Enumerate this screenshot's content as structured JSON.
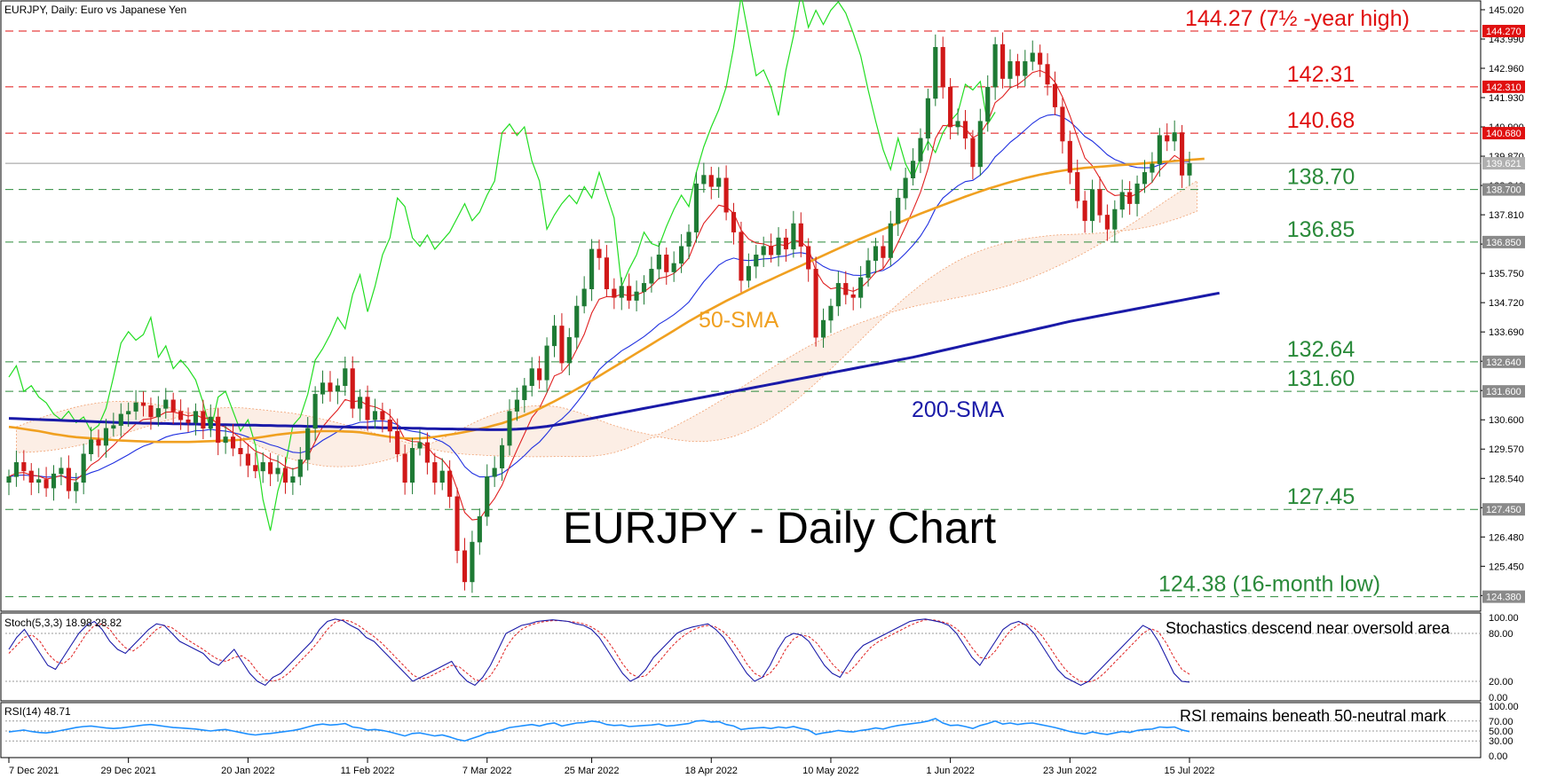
{
  "header": {
    "main": "EURJPY, Daily:  Euro vs Japanese Yen",
    "stoch": "Stoch(5,3,3) 18.98 28.82",
    "rsi": "RSI(14) 48.71"
  },
  "title": "EURJPY - Daily Chart",
  "notes": {
    "stoch": "Stochastics descend near oversold area",
    "rsi": "RSI remains beneath 50-neutral mark"
  },
  "labels": {
    "sma50": "50-SMA",
    "sma200": "200-SMA"
  },
  "colors": {
    "resistance": "#e01010",
    "support": "#2a8a3a",
    "candle_up": "#1e7a34",
    "candle_down": "#d01818",
    "sma50": "#f0a020",
    "sma200": "#1a1aa8",
    "tenkan": "#e02020",
    "kijun": "#2030e0",
    "chikou": "#22dd22",
    "cloud": "#f0a070",
    "stoch_main": "#1a1aa8",
    "stoch_signal": "#e02020",
    "rsi": "#1e90ff"
  },
  "levels": [
    {
      "value": 144.27,
      "type": "resistance",
      "text": "144.27 (7½ -year high)",
      "tag": "144.270"
    },
    {
      "value": 142.31,
      "type": "resistance",
      "text": "142.31",
      "tag": "142.310"
    },
    {
      "value": 140.68,
      "type": "resistance",
      "text": "140.68",
      "tag": "140.680"
    },
    {
      "value": 138.7,
      "type": "support",
      "text": "138.70",
      "tag": "138.700"
    },
    {
      "value": 136.85,
      "type": "support",
      "text": "136.85",
      "tag": "136.850"
    },
    {
      "value": 132.64,
      "type": "support",
      "text": "132.64",
      "tag": "132.640"
    },
    {
      "value": 131.6,
      "type": "support",
      "text": "131.60",
      "tag": "131.600"
    },
    {
      "value": 127.45,
      "type": "support",
      "text": "127.45",
      "tag": "127.450"
    },
    {
      "value": 124.38,
      "type": "support",
      "text": "124.38 (16-month low)",
      "tag": "124.380"
    }
  ],
  "current_price": {
    "value": 139.62,
    "tag": "139.621"
  },
  "chart_data": {
    "type": "candlestick",
    "title": "EURJPY - Daily Chart",
    "price_axis": {
      "range": [
        123.9,
        145.3
      ],
      "ticks": [
        145.02,
        143.99,
        142.96,
        141.93,
        140.9,
        139.87,
        138.84,
        137.81,
        136.78,
        135.75,
        134.72,
        133.69,
        132.66,
        131.63,
        130.6,
        129.57,
        128.54,
        127.51,
        126.48,
        125.45,
        124.42
      ],
      "tick_labels": [
        "145.020",
        "143.990",
        "142.960",
        "141.930",
        "140.900",
        "139.870",
        "138.840",
        "137.810",
        "136.780",
        "135.750",
        "134.720",
        "133.690",
        "132.660",
        "131.630",
        "130.600",
        "129.570",
        "128.540",
        "127.510",
        "126.480",
        "125.450",
        "124.420"
      ]
    },
    "date_labels": [
      "7 Dec 2021",
      "29 Dec 2021",
      "20 Jan 2022",
      "11 Feb 2022",
      "7 Mar 2022",
      "25 Mar 2022",
      "18 Apr 2022",
      "10 May 2022",
      "1 Jun 2022",
      "23 Jun 2022",
      "15 Jul 2022"
    ],
    "date_label_index": [
      0,
      16,
      32,
      48,
      64,
      78,
      94,
      110,
      126,
      142,
      158
    ],
    "candles_close": [
      128.6,
      129.1,
      128.8,
      128.4,
      128.5,
      128.2,
      128.7,
      128.9,
      128.1,
      128.4,
      129.4,
      129.9,
      129.7,
      130.3,
      130.4,
      130.8,
      130.9,
      131.2,
      131.1,
      130.7,
      131.0,
      131.3,
      130.9,
      130.6,
      130.5,
      130.9,
      130.3,
      130.7,
      129.8,
      130.0,
      129.6,
      129.4,
      129.0,
      128.8,
      129.1,
      128.7,
      128.9,
      128.4,
      128.6,
      129.2,
      130.3,
      131.5,
      131.9,
      131.6,
      131.8,
      132.4,
      131.0,
      131.4,
      130.6,
      130.9,
      130.6,
      130.2,
      129.4,
      128.4,
      129.6,
      129.8,
      129.1,
      128.4,
      128.8,
      127.9,
      126.0,
      124.9,
      126.3,
      127.2,
      128.6,
      128.9,
      129.7,
      130.9,
      131.3,
      131.8,
      132.4,
      132.0,
      133.2,
      133.9,
      132.6,
      133.5,
      134.6,
      135.2,
      136.6,
      136.3,
      135.2,
      134.9,
      135.3,
      134.8,
      135.1,
      135.4,
      135.9,
      136.4,
      135.8,
      136.1,
      136.7,
      137.2,
      138.9,
      139.2,
      138.8,
      139.1,
      137.9,
      137.2,
      135.5,
      136.0,
      136.4,
      136.7,
      136.4,
      137.0,
      136.6,
      137.5,
      136.7,
      135.9,
      133.5,
      134.1,
      134.6,
      135.4,
      135.0,
      134.9,
      135.6,
      136.2,
      136.7,
      136.3,
      137.5,
      138.4,
      139.1,
      139.7,
      140.5,
      141.9,
      143.7,
      142.3,
      140.9,
      141.1,
      140.5,
      139.5,
      141.1,
      142.3,
      143.8,
      142.6,
      143.2,
      142.7,
      143.2,
      143.5,
      143.1,
      142.4,
      141.6,
      140.4,
      139.3,
      138.3,
      137.6,
      138.7,
      137.8,
      137.3,
      138.0,
      138.6,
      138.2,
      138.9,
      139.3,
      139.6,
      140.6,
      140.4,
      140.7,
      139.2,
      139.62
    ],
    "sma50": [
      130.35,
      130.32,
      130.28,
      130.24,
      130.2,
      130.15,
      130.1,
      130.06,
      130.02,
      129.99,
      129.97,
      129.95,
      129.93,
      129.91,
      129.89,
      129.87,
      129.86,
      129.85,
      129.84,
      129.83,
      129.82,
      129.82,
      129.82,
      129.82,
      129.82,
      129.83,
      129.84,
      129.85,
      129.86,
      129.87,
      129.88,
      129.9,
      129.93,
      129.96,
      130.0,
      130.04,
      130.08,
      130.11,
      130.14,
      130.16,
      130.18,
      130.19,
      130.2,
      130.2,
      130.2,
      130.19,
      130.18,
      130.16,
      130.12,
      130.08,
      130.04,
      130.0,
      129.97,
      129.95,
      129.94,
      129.95,
      129.97,
      130.0,
      130.04,
      130.08,
      130.12,
      130.17,
      130.22,
      130.28,
      130.34,
      130.41,
      130.48,
      130.57,
      130.66,
      130.76,
      130.87,
      130.99,
      131.12,
      131.25,
      131.39,
      131.53,
      131.68,
      131.83,
      131.98,
      132.14,
      132.3,
      132.46,
      132.62,
      132.78,
      132.94,
      133.1,
      133.26,
      133.42,
      133.58,
      133.74,
      133.9,
      134.06,
      134.21,
      134.36,
      134.5,
      134.64,
      134.78,
      134.91,
      135.04,
      135.17,
      135.3,
      135.42,
      135.54,
      135.66,
      135.78,
      135.9,
      136.02,
      136.14,
      136.26,
      136.38,
      136.5,
      136.62,
      136.74,
      136.86,
      136.97,
      137.08,
      137.19,
      137.3,
      137.41,
      137.52,
      137.63,
      137.74,
      137.85,
      137.95,
      138.05,
      138.15,
      138.25,
      138.35,
      138.45,
      138.54,
      138.63,
      138.72,
      138.8,
      138.88,
      138.96,
      139.03,
      139.1,
      139.16,
      139.22,
      139.27,
      139.32,
      139.36,
      139.4,
      139.43,
      139.46,
      139.48,
      139.5,
      139.52,
      139.54,
      139.56,
      139.58,
      139.6,
      139.62,
      139.64,
      139.66,
      139.68,
      139.7,
      139.72,
      139.74,
      139.76,
      139.78
    ],
    "sma200": [
      130.65,
      130.64,
      130.63,
      130.62,
      130.61,
      130.6,
      130.59,
      130.58,
      130.57,
      130.56,
      130.55,
      130.54,
      130.53,
      130.52,
      130.51,
      130.5,
      130.49,
      130.49,
      130.48,
      130.48,
      130.47,
      130.47,
      130.46,
      130.46,
      130.45,
      130.45,
      130.44,
      130.44,
      130.43,
      130.43,
      130.42,
      130.42,
      130.41,
      130.41,
      130.4,
      130.4,
      130.39,
      130.39,
      130.38,
      130.38,
      130.37,
      130.37,
      130.36,
      130.36,
      130.35,
      130.35,
      130.34,
      130.34,
      130.33,
      130.33,
      130.32,
      130.32,
      130.31,
      130.31,
      130.3,
      130.3,
      130.29,
      130.29,
      130.28,
      130.28,
      130.27,
      130.27,
      130.26,
      130.26,
      130.25,
      130.25,
      130.25,
      130.26,
      130.27,
      130.29,
      130.31,
      130.34,
      130.37,
      130.41,
      130.45,
      130.5,
      130.55,
      130.6,
      130.65,
      130.7,
      130.75,
      130.8,
      130.85,
      130.9,
      130.95,
      131.0,
      131.05,
      131.1,
      131.15,
      131.2,
      131.25,
      131.3,
      131.35,
      131.4,
      131.45,
      131.5,
      131.55,
      131.6,
      131.65,
      131.7,
      131.75,
      131.8,
      131.85,
      131.9,
      131.95,
      132.0,
      132.05,
      132.1,
      132.15,
      132.2,
      132.25,
      132.3,
      132.35,
      132.4,
      132.45,
      132.5,
      132.55,
      132.6,
      132.65,
      132.7,
      132.75,
      132.8,
      132.86,
      132.92,
      132.98,
      133.04,
      133.1,
      133.16,
      133.22,
      133.28,
      133.34,
      133.4,
      133.46,
      133.52,
      133.58,
      133.64,
      133.7,
      133.76,
      133.82,
      133.88,
      133.94,
      134.0,
      134.06,
      134.11,
      134.16,
      134.21,
      134.26,
      134.31,
      134.36,
      134.41,
      134.46,
      134.51,
      134.56,
      134.61,
      134.66,
      134.71,
      134.76,
      134.81,
      134.86,
      134.91,
      134.96,
      135.01,
      135.06
    ],
    "stochastic": {
      "main": [
        60,
        75,
        85,
        70,
        55,
        40,
        35,
        50,
        65,
        80,
        90,
        95,
        85,
        70,
        60,
        55,
        65,
        75,
        85,
        92,
        90,
        80,
        70,
        65,
        60,
        55,
        45,
        40,
        50,
        60,
        45,
        30,
        20,
        15,
        25,
        30,
        40,
        50,
        60,
        70,
        85,
        95,
        98,
        96,
        90,
        85,
        75,
        70,
        60,
        50,
        40,
        30,
        20,
        25,
        30,
        35,
        40,
        45,
        30,
        20,
        15,
        25,
        40,
        60,
        80,
        85,
        90,
        92,
        95,
        96,
        97,
        96,
        95,
        92,
        90,
        85,
        75,
        60,
        45,
        30,
        20,
        25,
        35,
        50,
        60,
        70,
        80,
        85,
        88,
        90,
        92,
        85,
        75,
        60,
        45,
        30,
        20,
        25,
        40,
        60,
        75,
        80,
        78,
        70,
        55,
        40,
        30,
        25,
        40,
        55,
        65,
        70,
        75,
        80,
        85,
        90,
        95,
        97,
        98,
        96,
        94,
        90,
        80,
        65,
        50,
        40,
        55,
        70,
        85,
        92,
        95,
        90,
        80,
        65,
        50,
        35,
        25,
        20,
        15,
        20,
        30,
        40,
        50,
        60,
        70,
        80,
        90,
        85,
        70,
        50,
        30,
        20,
        18.98
      ],
      "signal": [
        55,
        65,
        75,
        78,
        70,
        55,
        45,
        42,
        50,
        65,
        80,
        90,
        92,
        85,
        72,
        62,
        58,
        65,
        75,
        85,
        90,
        87,
        80,
        72,
        66,
        60,
        53,
        47,
        45,
        50,
        52,
        45,
        32,
        22,
        20,
        23,
        30,
        40,
        50,
        60,
        72,
        85,
        94,
        97,
        95,
        90,
        83,
        76,
        68,
        58,
        48,
        38,
        28,
        23,
        25,
        30,
        35,
        40,
        38,
        30,
        22,
        20,
        27,
        42,
        62,
        76,
        85,
        90,
        93,
        95,
        96,
        96,
        95,
        94,
        92,
        88,
        82,
        72,
        58,
        42,
        30,
        25,
        27,
        37,
        48,
        60,
        70,
        78,
        84,
        88,
        90,
        88,
        82,
        72,
        58,
        42,
        30,
        25,
        30,
        42,
        60,
        73,
        78,
        76,
        68,
        55,
        42,
        32,
        30,
        40,
        52,
        63,
        70,
        75,
        80,
        85,
        90,
        94,
        97,
        97,
        95,
        92,
        86,
        76,
        62,
        50,
        48,
        58,
        72,
        84,
        91,
        92,
        87,
        77,
        63,
        48,
        35,
        26,
        20,
        19,
        22,
        30,
        40,
        50,
        60,
        70,
        80,
        86,
        82,
        68,
        50,
        35,
        28.82
      ]
    },
    "rsi": [
      48,
      50,
      52,
      49,
      47,
      46,
      48,
      51,
      54,
      57,
      59,
      60,
      58,
      56,
      55,
      56,
      58,
      60,
      62,
      63,
      61,
      59,
      57,
      56,
      55,
      54,
      52,
      50,
      52,
      53,
      50,
      47,
      44,
      42,
      44,
      45,
      47,
      49,
      51,
      54,
      58,
      62,
      64,
      62,
      63,
      65,
      58,
      56,
      52,
      53,
      51,
      48,
      44,
      40,
      45,
      46,
      43,
      40,
      42,
      38,
      33,
      30,
      35,
      40,
      46,
      48,
      52,
      57,
      59,
      61,
      63,
      60,
      64,
      66,
      60,
      63,
      66,
      67,
      70,
      68,
      63,
      61,
      62,
      59,
      60,
      61,
      62,
      64,
      60,
      61,
      63,
      65,
      70,
      71,
      68,
      69,
      63,
      60,
      53,
      55,
      56,
      57,
      55,
      58,
      56,
      59,
      55,
      52,
      43,
      46,
      48,
      51,
      49,
      48,
      51,
      53,
      56,
      54,
      58,
      61,
      63,
      65,
      67,
      70,
      75,
      66,
      61,
      62,
      59,
      55,
      61,
      65,
      70,
      64,
      66,
      63,
      65,
      66,
      63,
      60,
      57,
      53,
      49,
      46,
      44,
      48,
      45,
      43,
      46,
      49,
      47,
      51,
      53,
      54,
      58,
      57,
      58,
      52,
      48.71
    ],
    "stoch_axis": {
      "ticks": [
        100,
        80,
        20,
        0
      ],
      "tick_labels": [
        "100.00",
        "80.00",
        "20.00",
        "0.00"
      ]
    },
    "rsi_axis": {
      "ticks": [
        100,
        70,
        50,
        30,
        0
      ],
      "tick_labels": [
        "100.00",
        "70.00",
        "50.00",
        "30.00",
        "0.00"
      ]
    }
  }
}
